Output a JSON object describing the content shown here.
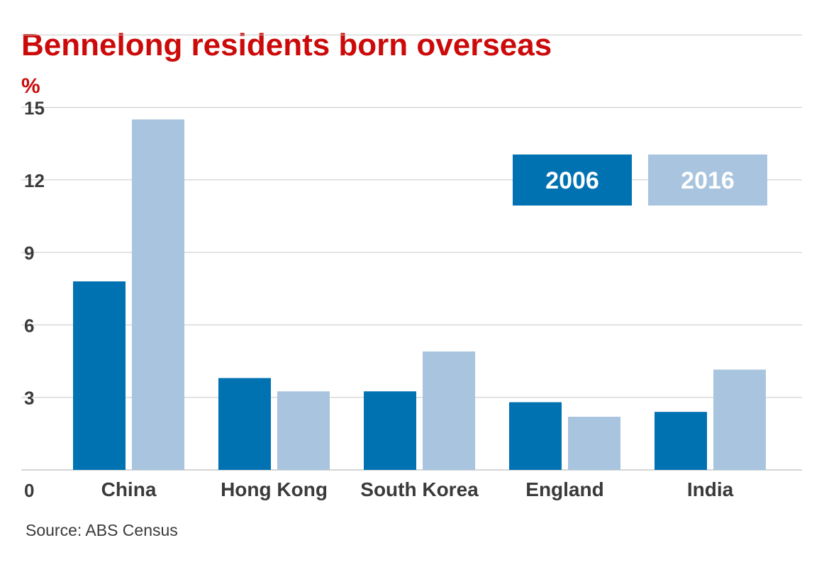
{
  "chart_data": {
    "type": "bar",
    "title": "Bennelong residents born overseas",
    "ylabel": "%",
    "xlabel": "",
    "categories": [
      "China",
      "Hong Kong",
      "South Korea",
      "England",
      "India"
    ],
    "series": [
      {
        "name": "2006",
        "values": [
          7.8,
          3.8,
          3.25,
          2.8,
          2.4
        ]
      },
      {
        "name": "2016",
        "values": [
          14.5,
          3.25,
          4.9,
          2.2,
          4.15
        ]
      }
    ],
    "ylim": [
      0,
      15
    ],
    "yticks": [
      0,
      3,
      6,
      9,
      12,
      15
    ],
    "grid": true,
    "legend_position": "top-right",
    "source": "Source: ABS Census"
  },
  "colors": {
    "title": "#cc0a0a",
    "series_2006": "#0072b1",
    "series_2016": "#a8c4de",
    "grid": "#c8c8c8",
    "axis_text": "#3a3a3a",
    "legend_text": "#ffffff"
  }
}
